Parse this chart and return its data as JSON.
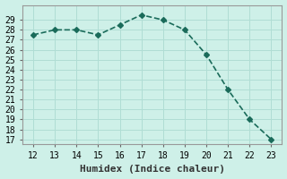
{
  "x": [
    12,
    13,
    14,
    15,
    16,
    17,
    18,
    19,
    20,
    21,
    22,
    23
  ],
  "y": [
    27.5,
    28.0,
    28.0,
    27.5,
    28.5,
    29.5,
    29.0,
    28.0,
    25.5,
    22.0,
    19.0,
    17.0
  ],
  "xlabel": "Humidex (Indice chaleur)",
  "xlim": [
    11.5,
    23.5
  ],
  "ylim": [
    17,
    30
  ],
  "yticks": [
    17,
    18,
    19,
    20,
    21,
    22,
    23,
    24,
    25,
    26,
    27,
    28,
    29
  ],
  "xticks": [
    12,
    13,
    14,
    15,
    16,
    17,
    18,
    19,
    20,
    21,
    22,
    23
  ],
  "line_color": "#1a6b5a",
  "marker": "D",
  "marker_size": 3,
  "bg_color": "#cef0e8",
  "grid_color": "#b0ddd4",
  "tick_label_fontsize": 7,
  "xlabel_fontsize": 8
}
